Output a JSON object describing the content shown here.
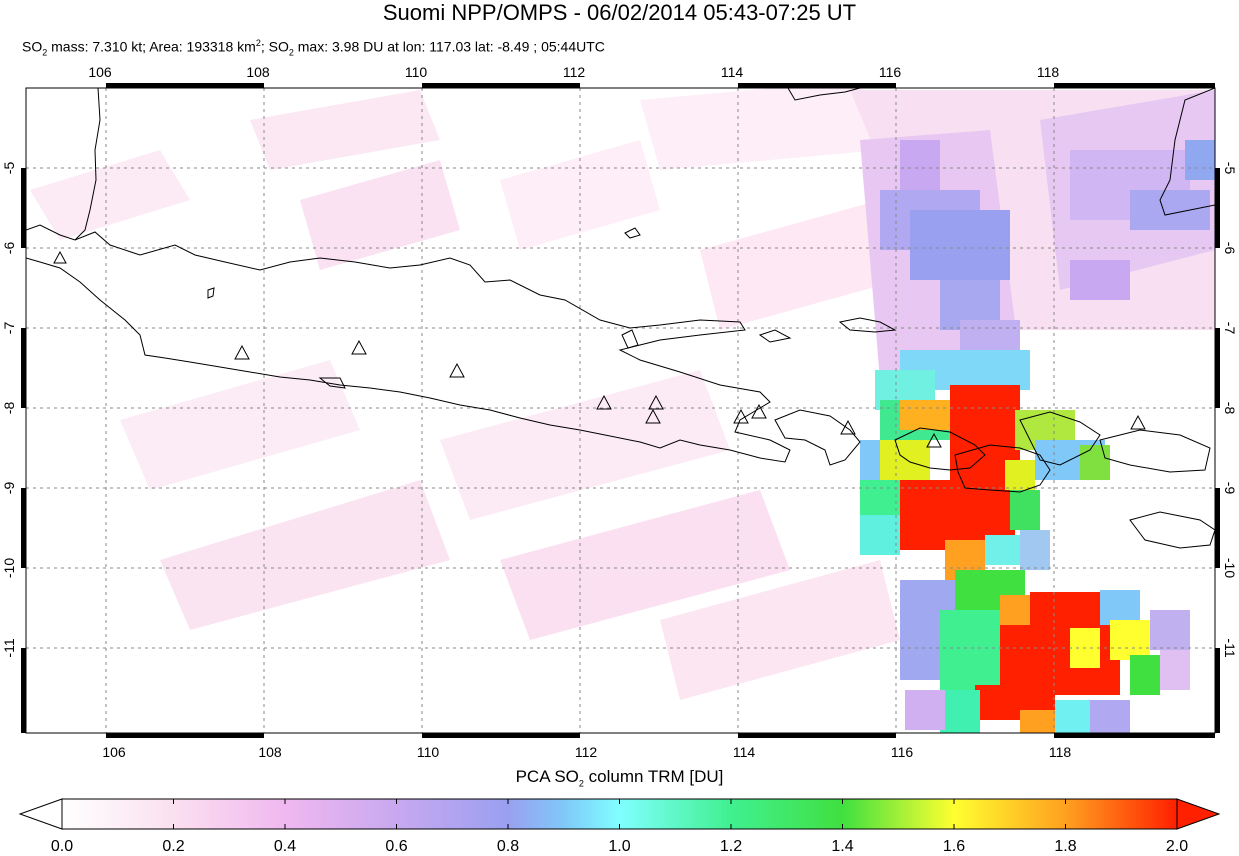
{
  "title": "Suomi NPP/OMPS - 06/02/2014 05:43-07:25 UT",
  "subtitle": {
    "mass_label": "SO",
    "mass_sub": "2",
    "mass_text": " mass: 7.310 kt; Area: 193318 km",
    "area_sup": "2",
    "sep": "; SO",
    "max_sub": "2",
    "max_text": " max: 3.98 DU at lon: 117.03 lat: -8.49 ; 05:44UTC"
  },
  "map": {
    "lon_ticks": [
      "106",
      "108",
      "110",
      "112",
      "114",
      "116",
      "118"
    ],
    "lat_ticks": [
      "-5",
      "-6",
      "-7",
      "-8",
      "-9",
      "-10",
      "-11"
    ],
    "lon_values": [
      106,
      108,
      110,
      112,
      114,
      116,
      118
    ],
    "lat_values": [
      -5,
      -6,
      -7,
      -8,
      -9,
      -10,
      -11
    ],
    "lon_range": [
      105,
      120
    ],
    "lat_range": [
      -12,
      -4
    ],
    "volcano_count": 12,
    "frame_color": "#000000"
  },
  "colorbar": {
    "label_pre": "PCA SO",
    "label_sub": "2",
    "label_post": " column TRM [DU]",
    "ticks": [
      "0.0",
      "0.2",
      "0.4",
      "0.6",
      "0.8",
      "1.0",
      "1.2",
      "1.4",
      "1.6",
      "1.8",
      "2.0"
    ],
    "range": [
      0,
      2
    ],
    "colors": [
      "#ffffff",
      "#fbe0f0",
      "#f0b8f0",
      "#c8a8f0",
      "#9aa0f0",
      "#80c8f8",
      "#80ffff",
      "#40f090",
      "#40e040",
      "#ffff30",
      "#ffa020",
      "#ff2000"
    ]
  }
}
